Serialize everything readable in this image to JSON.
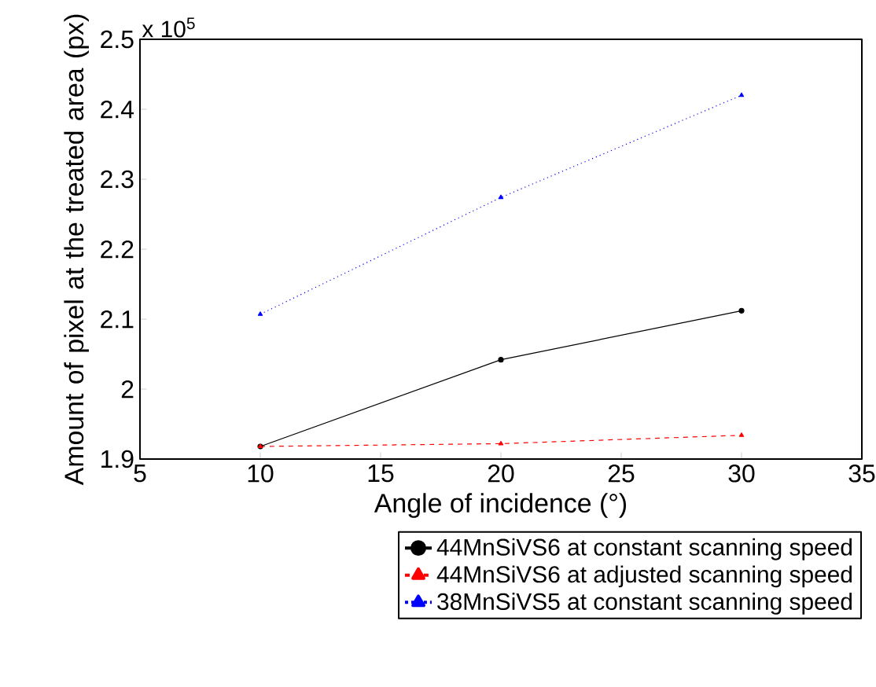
{
  "chart_data": {
    "type": "line",
    "xlabel": "Angle of incidence (°)",
    "ylabel": "Amount of pixel at the treated area (px)",
    "annotations": [
      "x 10$^{5}$"
    ],
    "xlim": [
      5,
      35
    ],
    "xticks": [
      5,
      10,
      15,
      20,
      25,
      30,
      35
    ],
    "ylim": [
      1.9,
      2.5
    ],
    "yticks": [
      1.9,
      2,
      2.1,
      2.2,
      2.3,
      2.4,
      2.5
    ],
    "x": [
      10,
      20,
      30
    ],
    "legend": "bottom",
    "grid": false,
    "series": [
      {
        "name": "44MnSiVS6 at constant scanning speed",
        "color": "#000000",
        "marker": "circle",
        "line_style": "solid",
        "values": [
          1.918,
          2.042,
          2.112
        ]
      },
      {
        "name": "44MnSiVS6 at adjusted scanning speed",
        "color": "#ff0000",
        "marker": "triangle",
        "line_style": "dashed",
        "values": [
          1.918,
          1.922,
          1.934
        ]
      },
      {
        "name": "38MnSiVS5 at constant scanning speed",
        "color": "#0000ff",
        "marker": "triangle",
        "line_style": "dotted",
        "values": [
          2.107,
          2.274,
          2.42
        ]
      }
    ]
  }
}
